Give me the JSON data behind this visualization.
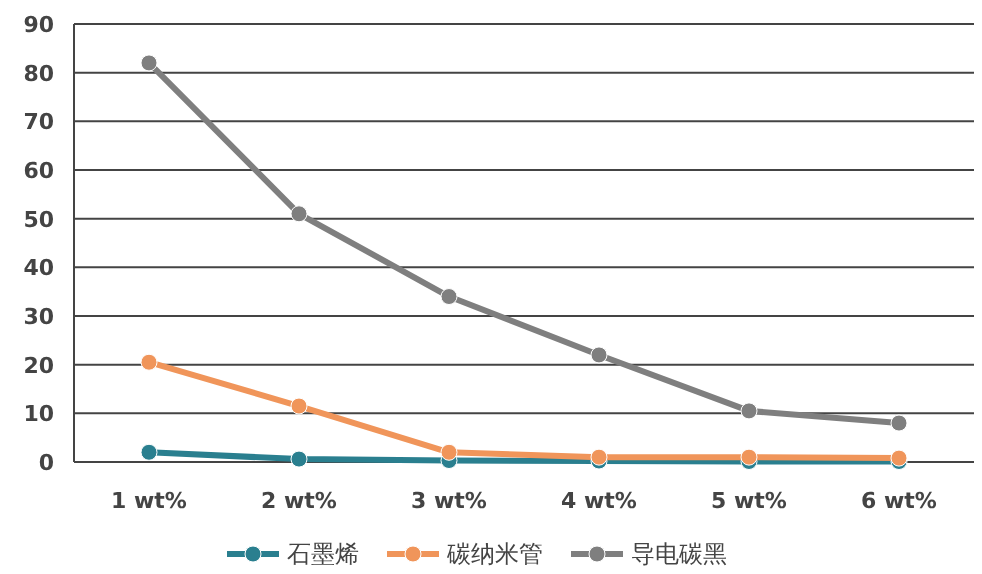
{
  "chart_data": {
    "type": "line",
    "categories": [
      "1 wt%",
      "2 wt%",
      "3 wt%",
      "4 wt%",
      "5 wt%",
      "6 wt%"
    ],
    "series": [
      {
        "name": "石墨烯",
        "color": "#2a7f8f",
        "values": [
          2,
          0.6,
          0.3,
          0.2,
          0.1,
          0.1
        ]
      },
      {
        "name": "碳纳米管",
        "color": "#f0955a",
        "values": [
          20.5,
          11.5,
          2,
          1,
          1,
          0.8
        ]
      },
      {
        "name": "导电碳黑",
        "color": "#7f7f7f",
        "values": [
          82,
          51,
          34,
          22,
          10.5,
          8
        ]
      }
    ],
    "ylim": [
      0,
      90
    ],
    "yticks": [
      0,
      10,
      20,
      30,
      40,
      50,
      60,
      70,
      80,
      90
    ],
    "grid": "y",
    "legend": "bottom",
    "marker": "circle",
    "line_style": "solid"
  }
}
